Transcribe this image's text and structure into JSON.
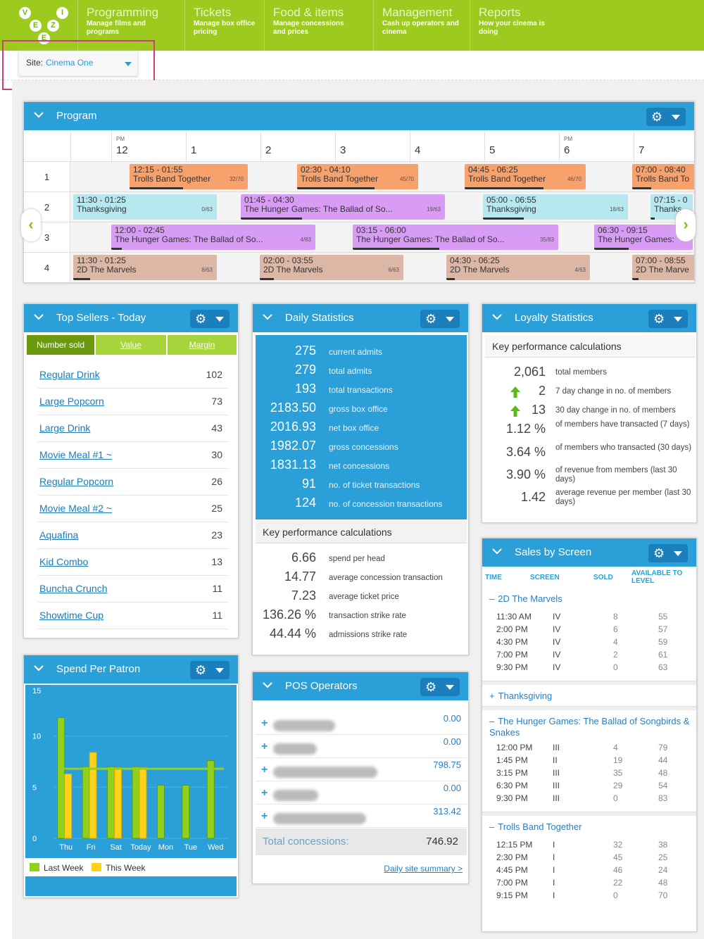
{
  "logo": {
    "letters": [
      "V",
      "I",
      "E",
      "Z",
      "E"
    ]
  },
  "nav": [
    {
      "title": "Programming",
      "sub": "Manage films and programs"
    },
    {
      "title": "Tickets",
      "sub": "Manage box office pricing"
    },
    {
      "title": "Food & items",
      "sub": "Manage concessions and prices"
    },
    {
      "title": "Management",
      "sub": "Cash up operators and cinema"
    },
    {
      "title": "Reports",
      "sub": "How your cinema is doing"
    }
  ],
  "site": {
    "label": "Site:",
    "value": "Cinema One"
  },
  "program": {
    "title": "Program",
    "hours": [
      {
        "pm": "PM",
        "n": "12"
      },
      {
        "pm": "",
        "n": "1"
      },
      {
        "pm": "",
        "n": "2"
      },
      {
        "pm": "",
        "n": "3"
      },
      {
        "pm": "",
        "n": "4"
      },
      {
        "pm": "",
        "n": "5"
      },
      {
        "pm": "PM",
        "n": "6"
      },
      {
        "pm": "",
        "n": "7"
      }
    ],
    "rows": [
      {
        "screen": "1",
        "sessions": [
          {
            "time": "12:15 - 01:55",
            "film": "Trolls Band Together",
            "cap": "32/70",
            "color": "#f7a26d",
            "fill": 0.45
          },
          {
            "time": "02:30 - 04:10",
            "film": "Trolls Band Together",
            "cap": "45/70",
            "color": "#f7a26d",
            "fill": 0.64
          },
          {
            "time": "04:45 - 06:25",
            "film": "Trolls Band Together",
            "cap": "46/70",
            "color": "#f7a26d",
            "fill": 0.65
          },
          {
            "time": "07:00 - 08:40",
            "film": "Trolls Band To",
            "cap": "",
            "color": "#f7a26d",
            "fill": 0.3
          }
        ]
      },
      {
        "screen": "2",
        "sessions": [
          {
            "time": "11:30 - 01:25",
            "film": "Thanksgiving",
            "cap": "0/63",
            "color": "#b7e8ef",
            "fill": 0
          },
          {
            "time": "01:45 - 04:30",
            "film": "The Hunger Games: The Ballad of So...",
            "cap": "19/63",
            "color": "#d99cf5",
            "fill": 0.3
          },
          {
            "time": "05:00 - 06:55",
            "film": "Thanksgiving",
            "cap": "18/63",
            "color": "#b7e8ef",
            "fill": 0.28
          },
          {
            "time": "07:15 - 0",
            "film": "Thanks",
            "cap": "",
            "color": "#b7e8ef",
            "fill": 0.1
          }
        ]
      },
      {
        "screen": "3",
        "sessions": [
          {
            "time": "12:00 - 02:45",
            "film": "The Hunger Games: The Ballad of So...",
            "cap": "4/83",
            "color": "#d99cf5",
            "fill": 0.05
          },
          {
            "time": "03:15 - 06:00",
            "film": "The Hunger Games: The Ballad of So...",
            "cap": "35/83",
            "color": "#d99cf5",
            "fill": 0.42
          },
          {
            "time": "06:30 - 09:15",
            "film": "The Hunger Games:",
            "cap": "",
            "color": "#d99cf5",
            "fill": 0.35
          }
        ]
      },
      {
        "screen": "4",
        "sessions": [
          {
            "time": "11:30 - 01:25",
            "film": "2D The Marvels",
            "cap": "8/63",
            "color": "#dcb7a6",
            "fill": 0.12
          },
          {
            "time": "02:00 - 03:55",
            "film": "2D The Marvels",
            "cap": "6/63",
            "color": "#dcb7a6",
            "fill": 0.1
          },
          {
            "time": "04:30 - 06:25",
            "film": "2D The Marvels",
            "cap": "4/63",
            "color": "#dcb7a6",
            "fill": 0.06
          },
          {
            "time": "07:00 - 08:55",
            "film": "2D The Marve",
            "cap": "",
            "color": "#dcb7a6",
            "fill": 0.1
          }
        ]
      }
    ]
  },
  "top_sellers": {
    "title": "Top Sellers - Today",
    "tabs": [
      "Number sold",
      "Value",
      "Margin"
    ],
    "items": [
      {
        "name": "Regular Drink",
        "count": "102"
      },
      {
        "name": "Large Popcorn",
        "count": "73"
      },
      {
        "name": "Large Drink",
        "count": "43"
      },
      {
        "name": "Movie Meal #1 ~",
        "count": "30"
      },
      {
        "name": "Regular Popcorn",
        "count": "26"
      },
      {
        "name": "Movie Meal #2 ~",
        "count": "25"
      },
      {
        "name": "Aquafina",
        "count": "23"
      },
      {
        "name": "Kid Combo",
        "count": "13"
      },
      {
        "name": "Buncha Crunch",
        "count": "11"
      },
      {
        "name": "Showtime Cup",
        "count": "11"
      }
    ]
  },
  "daily": {
    "title": "Daily Statistics",
    "stats": [
      {
        "v": "275",
        "l": "current admits"
      },
      {
        "v": "279",
        "l": "total admits"
      },
      {
        "v": "193",
        "l": "total transactions"
      },
      {
        "v": "2183.50",
        "l": "gross box office"
      },
      {
        "v": "2016.93",
        "l": "net box office"
      },
      {
        "v": "1982.07",
        "l": "gross concessions"
      },
      {
        "v": "1831.13",
        "l": "net concessions"
      },
      {
        "v": "91",
        "l": "no. of ticket transactions"
      },
      {
        "v": "124",
        "l": "no. of concession transactions"
      }
    ],
    "kpi_title": "Key performance calculations",
    "kpi": [
      {
        "v": "6.66",
        "l": "spend per head"
      },
      {
        "v": "14.77",
        "l": "average concession transaction"
      },
      {
        "v": "7.23",
        "l": "average ticket price"
      },
      {
        "v": "136.26 %",
        "l": "transaction strike rate"
      },
      {
        "v": "44.44 %",
        "l": "admissions strike rate"
      }
    ]
  },
  "loyalty": {
    "title": "Loyalty Statistics",
    "kpi_title": "Key performance calculations",
    "rows": [
      {
        "v": "2,061",
        "l": "total members",
        "up": false
      },
      {
        "v": "2",
        "l": "7 day change in no. of members",
        "up": true
      },
      {
        "v": "13",
        "l": "30 day change in no. of members",
        "up": true
      },
      {
        "v": "1.12 %",
        "l": "of members have transacted (7 days)",
        "up": false
      },
      {
        "v": "3.64 %",
        "l": "of members who transacted (30 days)",
        "up": false
      },
      {
        "v": "3.90 %",
        "l": "of revenue from members (last 30 days)",
        "up": false
      },
      {
        "v": "1.42",
        "l": "average revenue per member (last 30 days)",
        "up": false
      }
    ]
  },
  "spend": {
    "title": "Spend Per Patron",
    "legend": [
      "Last Week",
      "This Week"
    ]
  },
  "chart_data": {
    "type": "bar",
    "title": "",
    "categories": [
      "Thu",
      "Fri",
      "Sat",
      "Today",
      "Mon",
      "Tue",
      "Wed"
    ],
    "series": [
      {
        "name": "Last Week",
        "values": [
          11.8,
          7,
          7,
          7,
          5.2,
          5.2,
          7.6
        ],
        "color": "#8fd11c"
      },
      {
        "name": "This Week",
        "values": [
          6.3,
          8.4,
          6.9,
          6.9,
          0,
          0,
          0
        ],
        "color": "#ffd21a"
      }
    ],
    "reference_line": 6.8,
    "yticks": [
      "0",
      "5",
      "10",
      "15"
    ],
    "ylim": [
      0,
      15
    ]
  },
  "pos": {
    "title": "POS Operators",
    "rows": [
      {
        "amt": "0.00",
        "w": 88
      },
      {
        "amt": "0.00",
        "w": 62
      },
      {
        "amt": "798.75",
        "w": 148
      },
      {
        "amt": "0.00",
        "w": 64
      },
      {
        "amt": "313.42",
        "w": 132
      }
    ],
    "total_label": "Total concessions:",
    "total": "746.92",
    "link": "Daily site summary >"
  },
  "sbs": {
    "title": "Sales by Screen",
    "headers": [
      "TIME",
      "SCREEN",
      "SOLD",
      "AVAILABLE TO LEVEL"
    ],
    "films": [
      {
        "name": "2D The Marvels",
        "sign": "–",
        "rows": [
          [
            "11:30 AM",
            "IV",
            "8",
            "55"
          ],
          [
            "2:00 PM",
            "IV",
            "6",
            "57"
          ],
          [
            "4:30 PM",
            "IV",
            "4",
            "59"
          ],
          [
            "7:00 PM",
            "IV",
            "2",
            "61"
          ],
          [
            "9:30 PM",
            "IV",
            "0",
            "63"
          ]
        ]
      },
      {
        "name": "Thanksgiving",
        "sign": "+",
        "rows": []
      },
      {
        "name": "The Hunger Games: The Ballad of Songbirds & Snakes",
        "sign": "–",
        "rows": [
          [
            "12:00 PM",
            "III",
            "4",
            "79"
          ],
          [
            "1:45 PM",
            "II",
            "19",
            "44"
          ],
          [
            "3:15 PM",
            "III",
            "35",
            "48"
          ],
          [
            "6:30 PM",
            "III",
            "29",
            "54"
          ],
          [
            "9:30 PM",
            "III",
            "0",
            "83"
          ]
        ]
      },
      {
        "name": "Trolls Band Together",
        "sign": "–",
        "rows": [
          [
            "12:15 PM",
            "I",
            "32",
            "38"
          ],
          [
            "2:30 PM",
            "I",
            "45",
            "25"
          ],
          [
            "4:45 PM",
            "I",
            "46",
            "24"
          ],
          [
            "7:00 PM",
            "I",
            "22",
            "48"
          ],
          [
            "9:15 PM",
            "I",
            "0",
            "70"
          ]
        ]
      }
    ]
  }
}
